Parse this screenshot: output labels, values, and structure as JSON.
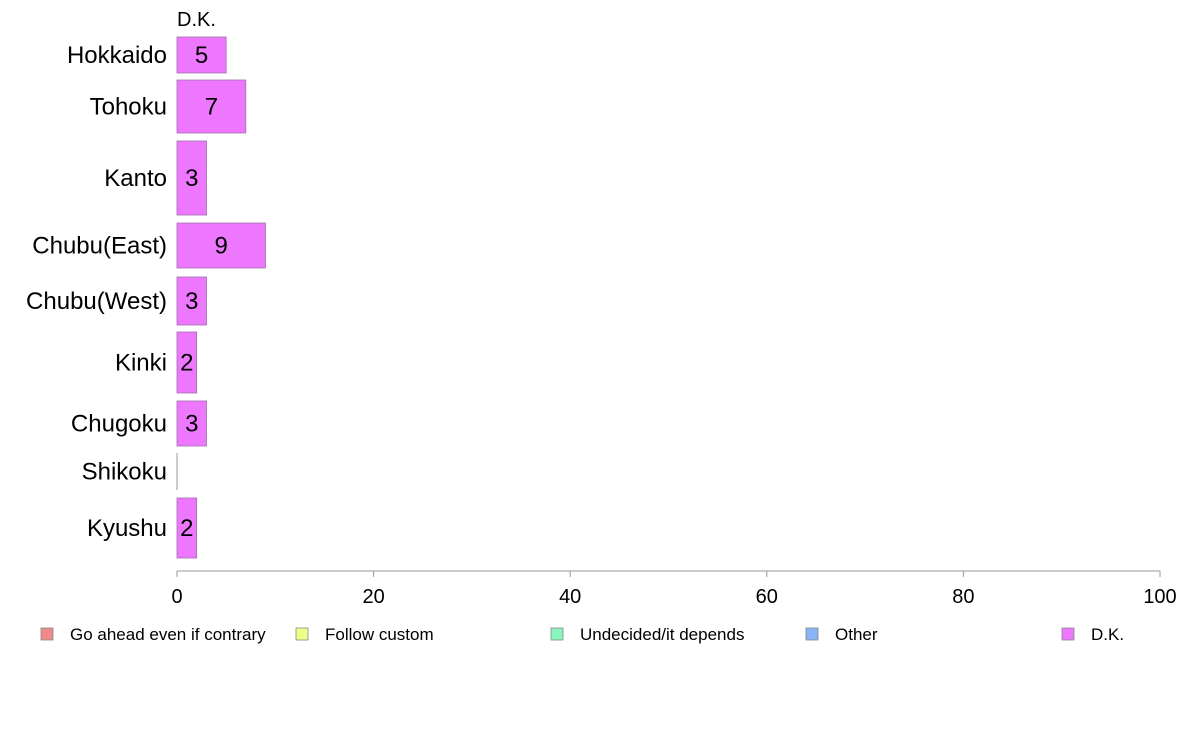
{
  "chart_data": {
    "type": "bar",
    "orientation": "horizontal",
    "stacked": true,
    "series_header": "D.K.",
    "categories": [
      "Hokkaido",
      "Tohoku",
      "Kanto",
      "Chubu(East)",
      "Chubu(West)",
      "Kinki",
      "Chugoku",
      "Shikoku",
      "Kyushu"
    ],
    "series": [
      {
        "name": "D.K.",
        "color": "#ee77ff",
        "values": [
          5,
          7,
          3,
          9,
          3,
          2,
          3,
          0,
          2
        ]
      }
    ],
    "data_labels": [
      "5",
      "7",
      "3",
      "9",
      "3",
      "2",
      "3",
      "",
      "2"
    ],
    "xlim": [
      0,
      100
    ],
    "xticks": [
      "0",
      "20",
      "40",
      "60",
      "80",
      "100"
    ],
    "grid": false,
    "legend_position": "bottom",
    "legend": [
      {
        "label": "Go ahead even if contrary",
        "color": "#f08a8a"
      },
      {
        "label": "Follow custom",
        "color": "#eeff88"
      },
      {
        "label": "Undecided/it depends",
        "color": "#88f5bb"
      },
      {
        "label": "Other",
        "color": "#88b5f5"
      },
      {
        "label": "D.K.",
        "color": "#ee77ff"
      }
    ]
  }
}
